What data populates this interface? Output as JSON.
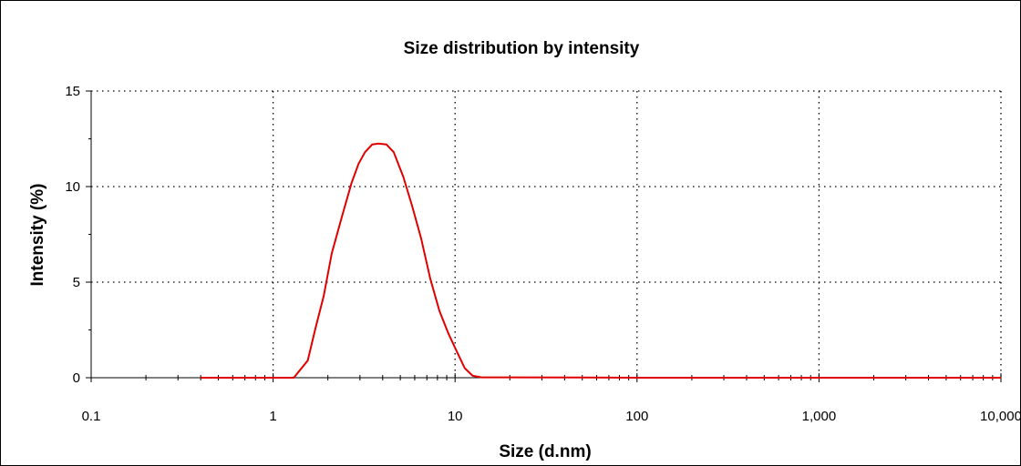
{
  "chart_data": {
    "type": "line",
    "title": "Size distribution by intensity",
    "xlabel": "Size (d.nm)",
    "ylabel": "Intensity (%)",
    "x_scale": "log",
    "xlim": [
      0.1,
      10000
    ],
    "ylim": [
      0,
      15
    ],
    "x_ticks": [
      0.1,
      1,
      10,
      100,
      1000,
      10000
    ],
    "x_tick_labels": [
      "0.1",
      "1",
      "10",
      "100",
      "1,000",
      "10,000"
    ],
    "y_ticks": [
      0,
      5,
      10,
      15
    ],
    "y_tick_labels": [
      "0",
      "5",
      "10",
      "15"
    ],
    "grid": true,
    "grid_style": "dotted",
    "legend": "none",
    "series": [
      {
        "color": "#e00000",
        "x": [
          0.4,
          0.6,
          0.8,
          1.0,
          1.3,
          1.55,
          1.7,
          1.9,
          2.1,
          2.4,
          2.7,
          2.95,
          3.2,
          3.5,
          3.8,
          4.2,
          4.6,
          5.2,
          5.8,
          6.5,
          7.3,
          8.2,
          9.2,
          10.3,
          11.3,
          12.5,
          14.0,
          20,
          50,
          100,
          1000,
          10000
        ],
        "y": [
          0,
          0,
          0,
          0,
          0,
          0.9,
          2.5,
          4.3,
          6.5,
          8.5,
          10.2,
          11.2,
          11.8,
          12.2,
          12.25,
          12.2,
          11.8,
          10.5,
          9.0,
          7.3,
          5.2,
          3.5,
          2.3,
          1.3,
          0.5,
          0.1,
          0.02,
          0.02,
          0.01,
          0,
          0,
          0
        ]
      }
    ]
  }
}
